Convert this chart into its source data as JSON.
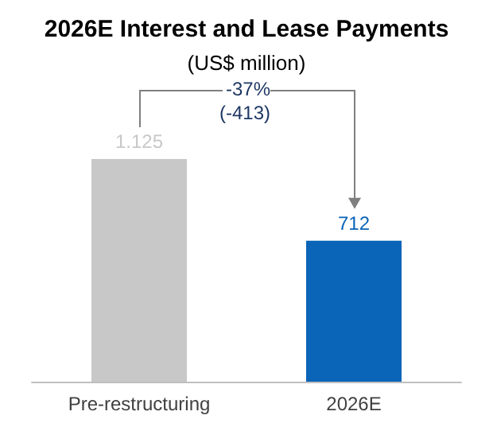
{
  "chart_data": {
    "type": "bar",
    "title": "2026E Interest and Lease Payments",
    "subtitle": "(US$ million)",
    "categories": [
      "Pre-restructuring",
      "2026E"
    ],
    "values": [
      1125,
      712
    ],
    "colors": [
      "#c8c8c8",
      "#0a64b8"
    ],
    "value_labels": [
      "1.125",
      "712"
    ],
    "annotations": [
      "-37%\n(-413)"
    ]
  }
}
